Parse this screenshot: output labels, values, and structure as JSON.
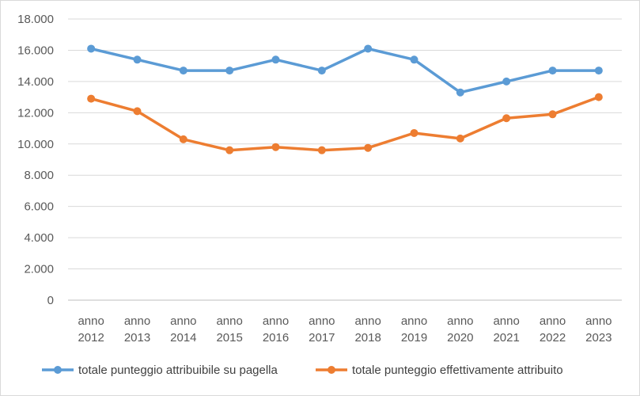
{
  "chart_data": {
    "type": "line",
    "title": "",
    "xlabel": "",
    "ylabel": "",
    "categories": [
      [
        "anno",
        "2012"
      ],
      [
        "anno",
        "2013"
      ],
      [
        "anno",
        "2014"
      ],
      [
        "anno",
        "2015"
      ],
      [
        "anno",
        "2016"
      ],
      [
        "anno",
        "2017"
      ],
      [
        "anno",
        "2018"
      ],
      [
        "anno",
        "2019"
      ],
      [
        "anno",
        "2020"
      ],
      [
        "anno",
        "2021"
      ],
      [
        "anno",
        "2022"
      ],
      [
        "anno",
        "2023"
      ]
    ],
    "ylim": [
      0,
      18000
    ],
    "yticks": [
      0,
      2000,
      4000,
      6000,
      8000,
      10000,
      12000,
      14000,
      16000,
      18000
    ],
    "ytick_labels": [
      "0",
      "2.000",
      "4.000",
      "6.000",
      "8.000",
      "10.000",
      "12.000",
      "14.000",
      "16.000",
      "18.000"
    ],
    "grid": true,
    "legend_position": "bottom",
    "series": [
      {
        "name": "totale punteggio attribuibile su pagella",
        "color": "#5b9bd5",
        "values": [
          16100,
          15400,
          14700,
          14700,
          15400,
          14700,
          16100,
          15400,
          13300,
          14000,
          14700,
          14700
        ]
      },
      {
        "name": "totale punteggio effettivamente attribuito",
        "color": "#ed7d31",
        "values": [
          12900,
          12100,
          10300,
          9600,
          9800,
          9600,
          9750,
          10700,
          10350,
          11650,
          11900,
          13000
        ]
      }
    ]
  }
}
